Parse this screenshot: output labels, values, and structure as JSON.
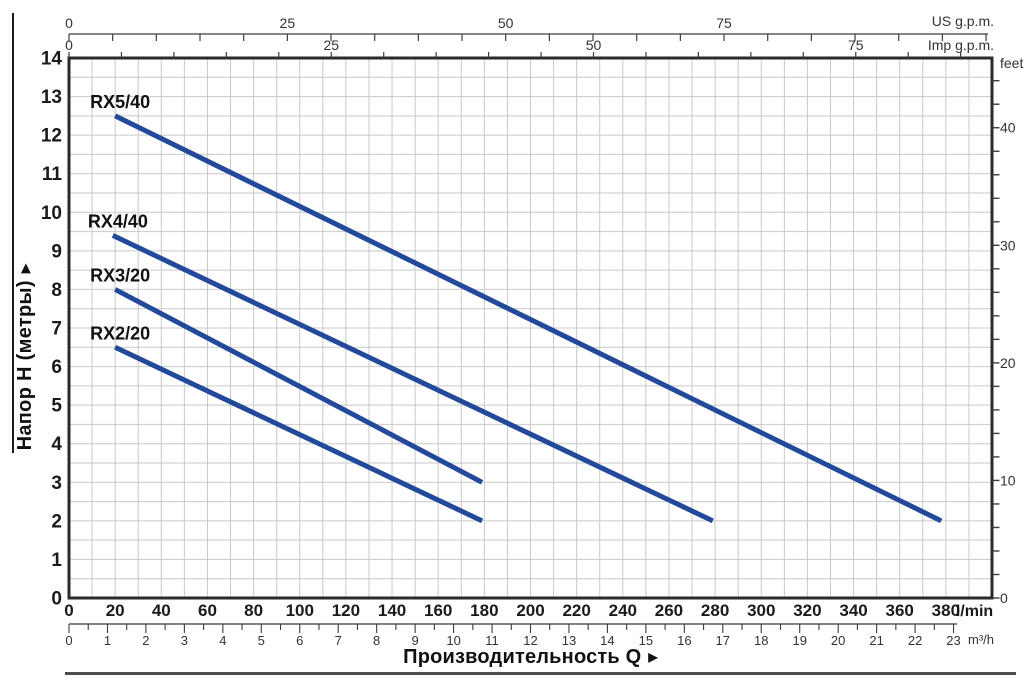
{
  "arrow": "▶",
  "chart_data": {
    "type": "line",
    "title": "",
    "xlabel": "Производительность Q",
    "ylabel": "Напор H (метры)",
    "x_axis_primary_unit": "l/min",
    "x_axis_secondary_unit": "m³/h",
    "y_axis_primary_unit": "метры",
    "y_axis_secondary_unit": "feet",
    "x_range_lmin": [
      0,
      400
    ],
    "y_range_m": [
      0,
      14
    ],
    "grid": "on",
    "curve_color": "#23499b",
    "series": [
      {
        "name": "RX5/40",
        "points": [
          [
            20,
            12.5
          ],
          [
            378,
            2.0
          ]
        ]
      },
      {
        "name": "RX4/40",
        "points": [
          [
            19,
            9.4
          ],
          [
            279,
            2.0
          ]
        ]
      },
      {
        "name": "RX3/20",
        "points": [
          [
            20,
            8.0
          ],
          [
            179,
            3.0
          ]
        ]
      },
      {
        "name": "RX2/20",
        "points": [
          [
            20,
            6.5
          ],
          [
            179,
            2.0
          ]
        ]
      }
    ]
  },
  "axes": {
    "x_lmin": {
      "unit": "l/min",
      "tick_labels": [
        0,
        20,
        40,
        60,
        80,
        100,
        120,
        140,
        160,
        180,
        200,
        220,
        240,
        260,
        280,
        300,
        320,
        340,
        360,
        380
      ],
      "grid_step": 10,
      "min": 0,
      "max": 400
    },
    "x_m3h": {
      "unit": "m³/h",
      "tick_labels": [
        0,
        1,
        2,
        3,
        4,
        5,
        6,
        7,
        8,
        9,
        10,
        11,
        12,
        13,
        14,
        15,
        16,
        17,
        18,
        19,
        20,
        21,
        22,
        23
      ],
      "tick_step": 0.5,
      "tick_max": 23
    },
    "x_us_gpm": {
      "unit": "US g.p.m.",
      "tick_labels": [
        0,
        25,
        50,
        75
      ],
      "tick_step": 5,
      "tick_max": 105
    },
    "x_imp_gpm": {
      "unit": "Imp g.p.m.",
      "tick_labels": [
        0,
        25,
        50,
        75
      ],
      "tick_step": 5,
      "tick_max": 85
    },
    "y_m": {
      "unit": "метры",
      "tick_labels": [
        0,
        1,
        2,
        3,
        4,
        5,
        6,
        7,
        8,
        9,
        10,
        11,
        12,
        13,
        14
      ],
      "grid_step": 0.5
    },
    "y_feet": {
      "unit": "feet",
      "tick_labels": [
        0,
        10,
        20,
        30,
        40
      ],
      "tick_step": 2,
      "tick_max": 44
    }
  }
}
